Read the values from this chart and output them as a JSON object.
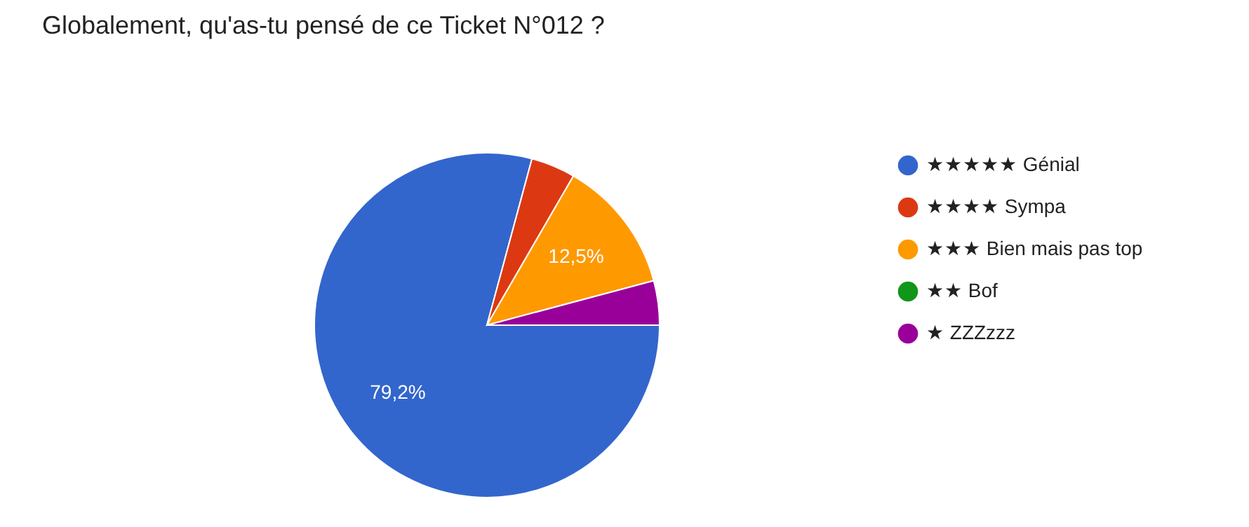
{
  "chart_data": {
    "type": "pie",
    "title": "Globalement, qu'as-tu pensé de ce Ticket N°012 ?",
    "categories": [
      "★★★★★ Génial",
      "★★★★ Sympa",
      "★★★ Bien mais pas top",
      "★★ Bof",
      "★ ZZZzzz"
    ],
    "values": [
      79.2,
      4.15,
      12.5,
      0,
      4.15
    ],
    "colors": [
      "#3366cc",
      "#dc3912",
      "#ff9900",
      "#109618",
      "#990099"
    ],
    "value_labels": [
      "79,2%",
      null,
      "12,5%",
      null,
      null
    ],
    "legend": "right"
  }
}
